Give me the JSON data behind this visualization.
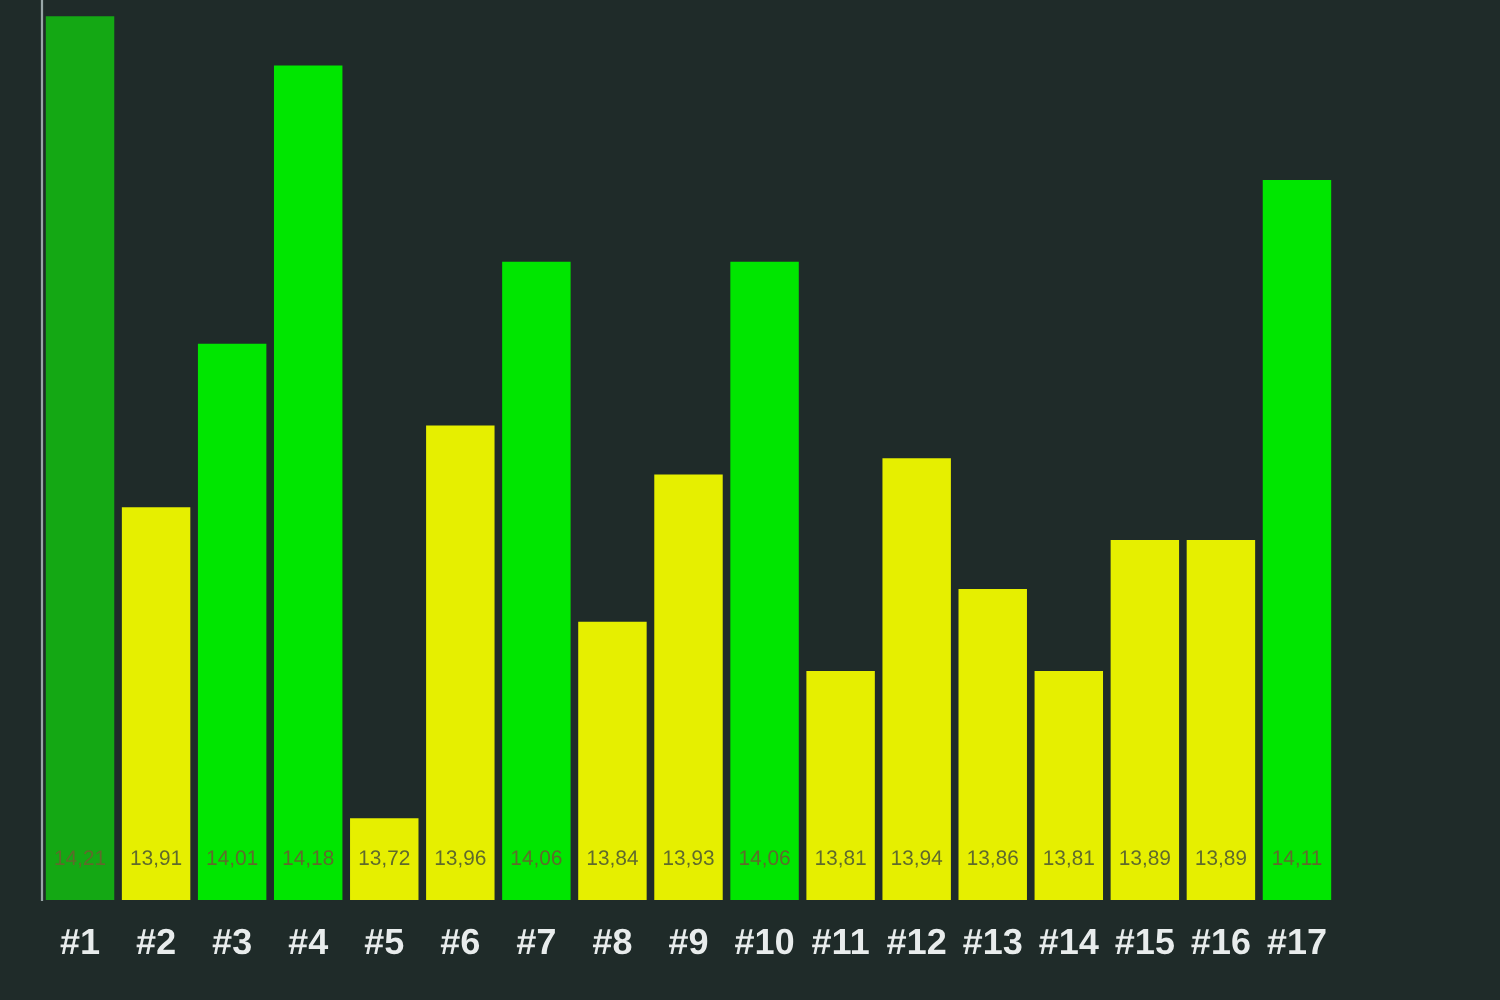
{
  "chart_data": {
    "type": "bar",
    "categories": [
      "#1",
      "#2",
      "#3",
      "#4",
      "#5",
      "#6",
      "#7",
      "#8",
      "#9",
      "#10",
      "#11",
      "#12",
      "#13",
      "#14",
      "#15",
      "#16",
      "#17"
    ],
    "values": [
      14.21,
      13.91,
      14.01,
      14.18,
      13.72,
      13.96,
      14.06,
      13.84,
      13.93,
      14.06,
      13.81,
      13.94,
      13.86,
      13.81,
      13.89,
      13.89,
      14.11
    ],
    "colors": [
      "#14a814",
      "#e6ef00",
      "#00e600",
      "#00e600",
      "#e6ef00",
      "#e6ef00",
      "#00e600",
      "#e6ef00",
      "#e6ef00",
      "#00e600",
      "#e6ef00",
      "#e6ef00",
      "#e6ef00",
      "#e6ef00",
      "#e6ef00",
      "#e6ef00",
      "#00e600"
    ],
    "value_labels": [
      "14,21",
      "13,91",
      "14,01",
      "14,18",
      "13,72",
      "13,96",
      "14,06",
      "13,84",
      "13,93",
      "14,06",
      "13,81",
      "13,94",
      "13,86",
      "13,81",
      "13,89",
      "13,89",
      "14,11"
    ],
    "ylim": [
      13.67,
      14.22
    ],
    "tick_labels": "x",
    "grid": false
  }
}
